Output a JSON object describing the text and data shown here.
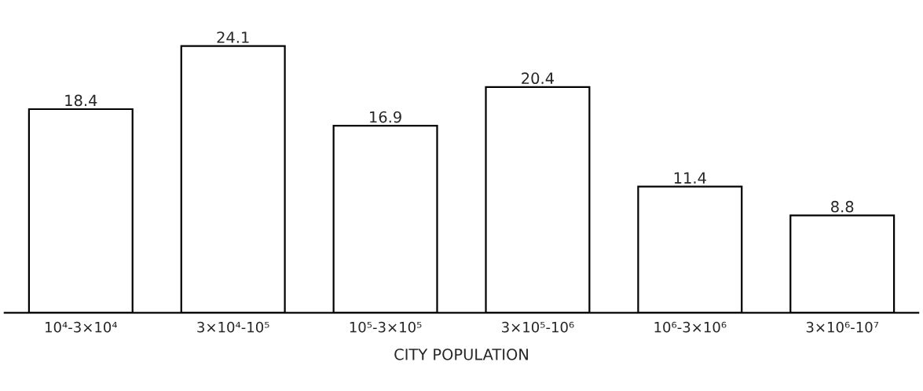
{
  "chart_data": {
    "type": "bar",
    "xlabel": "CITY POPULATION",
    "categories": [
      "10⁴-3×10⁴",
      "3×10⁴-10⁵",
      "10⁵-3×10⁵",
      "3×10⁵-10⁶",
      "10⁶-3×10⁶",
      "3×10⁶-10⁷"
    ],
    "values": [
      18.4,
      24.1,
      16.9,
      20.4,
      11.4,
      8.8
    ],
    "color": "#ffffff",
    "data_labels": true,
    "grid": false,
    "legend": false
  }
}
